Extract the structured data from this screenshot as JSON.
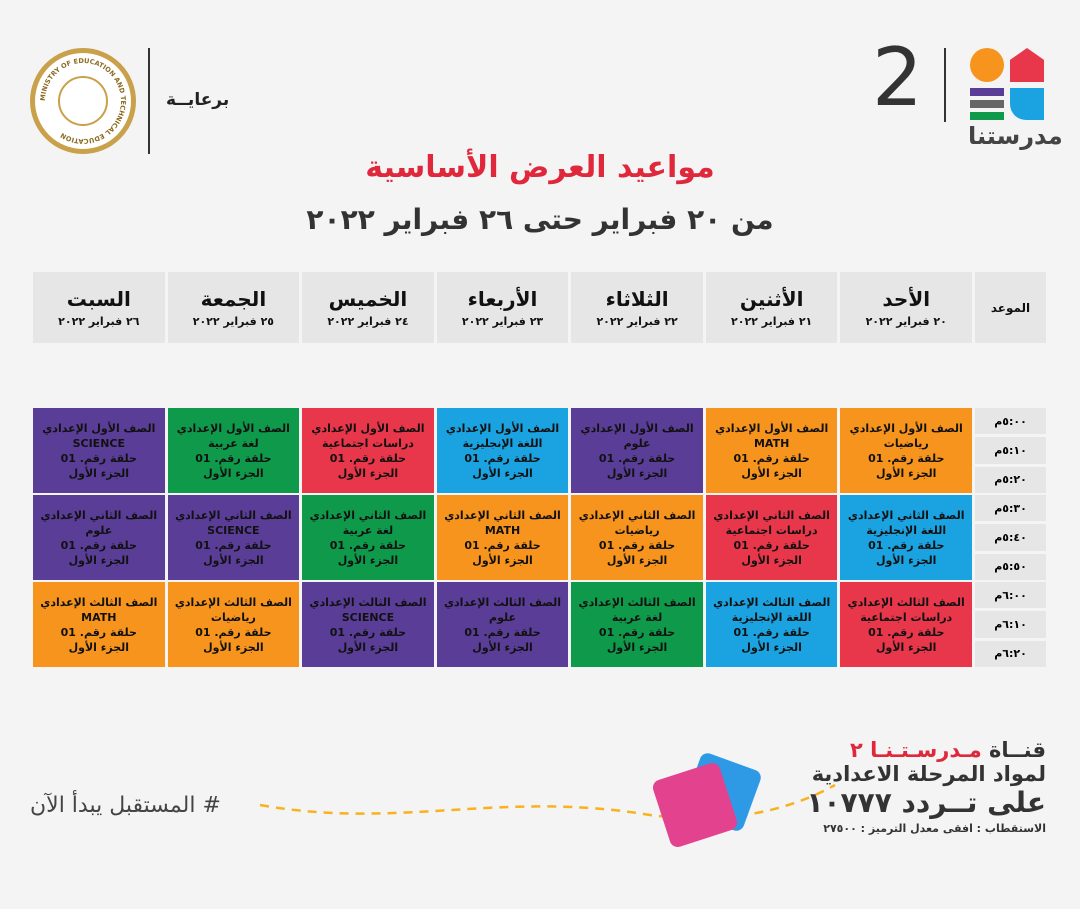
{
  "header": {
    "sponsor_label": "برعايــة",
    "ministry_seal_text": "MINISTRY OF EDUCATION AND TECHNICAL EDUCATION",
    "logo_number": "2",
    "logo_name": "مدرستنا",
    "title": "مواعيد العرض الأساسية",
    "subtitle": "من ٢٠ فبراير حتى ٢٦ فبراير ٢٠٢٢"
  },
  "table": {
    "time_header": "الموعد",
    "days": [
      {
        "day": "الأحد",
        "date": "٢٠ فبراير ٢٠٢٢"
      },
      {
        "day": "الأثنين",
        "date": "٢١ فبراير ٢٠٢٢"
      },
      {
        "day": "الثلاثاء",
        "date": "٢٢ فبراير ٢٠٢٢"
      },
      {
        "day": "الأربعاء",
        "date": "٢٣ فبراير ٢٠٢٢"
      },
      {
        "day": "الخميس",
        "date": "٢٤ فبراير ٢٠٢٢"
      },
      {
        "day": "الجمعة",
        "date": "٢٥ فبراير ٢٠٢٢"
      },
      {
        "day": "السبت",
        "date": "٢٦ فبراير ٢٠٢٢"
      }
    ],
    "episode_label": "حلقة رقم. 01",
    "part_label": "الجزء الأول",
    "colors": {
      "orange": "#f7941d",
      "purple": "#5a3d97",
      "blue": "#1aa3e0",
      "red": "#e8374b",
      "green": "#0f9a4b"
    },
    "rows": [
      {
        "grade": "الصف الأول الإعدادي",
        "times": [
          "٥:٠٠م",
          "٥:١٠م",
          "٥:٢٠م"
        ],
        "cells": [
          {
            "subject": "رياضيات",
            "color": "orange"
          },
          {
            "subject": "MATH",
            "color": "orange"
          },
          {
            "subject": "علوم",
            "color": "purple"
          },
          {
            "subject": "اللغة الإنجليزية",
            "color": "blue"
          },
          {
            "subject": "دراسات اجتماعية",
            "color": "red"
          },
          {
            "subject": "لغة عربية",
            "color": "green"
          },
          {
            "subject": "SCIENCE",
            "color": "purple"
          }
        ]
      },
      {
        "grade": "الصف الثاني الإعدادي",
        "times": [
          "٥:٣٠م",
          "٥:٤٠م",
          "٥:٥٠م"
        ],
        "cells": [
          {
            "subject": "اللغة الإنجليزية",
            "color": "blue"
          },
          {
            "subject": "دراسات اجتماعية",
            "color": "red"
          },
          {
            "subject": "رياضيات",
            "color": "orange"
          },
          {
            "subject": "MATH",
            "color": "orange"
          },
          {
            "subject": "لغة عربية",
            "color": "green"
          },
          {
            "subject": "SCIENCE",
            "color": "purple"
          },
          {
            "subject": "علوم",
            "color": "purple"
          }
        ]
      },
      {
        "grade": "الصف الثالث الإعدادي",
        "times": [
          "٦:٠٠م",
          "٦:١٠م",
          "٦:٢٠م"
        ],
        "cells": [
          {
            "subject": "دراسات اجتماعية",
            "color": "red"
          },
          {
            "subject": "اللغة الإنجليزية",
            "color": "blue"
          },
          {
            "subject": "لغة عربية",
            "color": "green"
          },
          {
            "subject": "علوم",
            "color": "purple"
          },
          {
            "subject": "SCIENCE",
            "color": "purple"
          },
          {
            "subject": "رياضيات",
            "color": "orange"
          },
          {
            "subject": "MATH",
            "color": "orange"
          }
        ]
      }
    ]
  },
  "footer": {
    "slogan": "# المستقبل يبدأ الآن",
    "channel_prefix": "قنــاة",
    "channel_name": "مـدرسـتـنـا ٢",
    "line2": "لمواد المرحلة الاعدادية",
    "line3": "على تــردد ١٠٧٧٧",
    "line4": "الاستقطاب : افقى معدل الترميز : ٢٧٥٠٠"
  }
}
